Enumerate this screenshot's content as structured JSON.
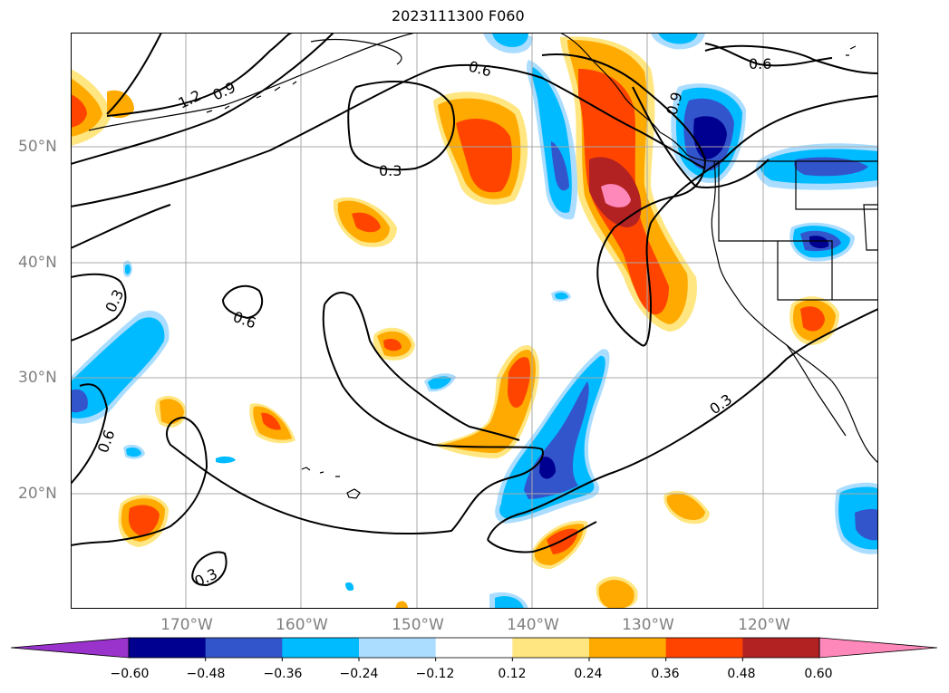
{
  "title": "2023111300 F060",
  "lat_labels": [
    "50°N",
    "40°N",
    "30°N",
    "20°N"
  ],
  "lon_labels": [
    "170°W",
    "160°W",
    "150°W",
    "140°W",
    "130°W",
    "120°W"
  ],
  "contour_labels": [
    "1.2",
    "0.9",
    "0.6",
    "0.6",
    "0.9",
    "0.3",
    "0.3",
    "0.6",
    "0.6",
    "0.3",
    "0.3"
  ],
  "colorbar": {
    "tick_labels": [
      "−0.60",
      "−0.48",
      "−0.36",
      "−0.24",
      "−0.12",
      "0.12",
      "0.24",
      "0.36",
      "0.48",
      "0.60"
    ],
    "colors": [
      "#9933cc",
      "#000090",
      "#3355cc",
      "#00bbff",
      "#aaddff",
      "#ffffff",
      "#ffe680",
      "#ffaa00",
      "#ff4400",
      "#b22222",
      "#ff88bb"
    ]
  },
  "fill_colors": {
    "pink": "#ff88bb",
    "darkred": "#b22222",
    "red": "#ff4400",
    "orange": "#ffaa00",
    "yellow": "#ffe680",
    "lightblue": "#aaddff",
    "cyan": "#00bbff",
    "blue": "#3355cc",
    "navy": "#000090"
  }
}
